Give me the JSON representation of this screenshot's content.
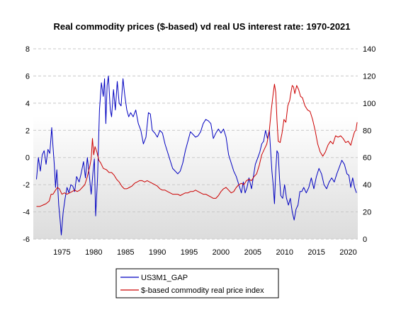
{
  "chart_data": {
    "type": "line",
    "title": "Real commodity prices ($-based) vd real US interest rate: 1970-2021",
    "xlim": [
      1970.5,
      2021.5
    ],
    "x_ticks": [
      1975,
      1980,
      1985,
      1990,
      1995,
      2000,
      2005,
      2010,
      2015,
      2020
    ],
    "x_tick_labels": [
      "1975",
      "1980",
      "1985",
      "1990",
      "1995",
      "2000",
      "2005",
      "2010",
      "2015",
      "2020"
    ],
    "y_left": {
      "lim": [
        -6,
        8
      ],
      "ticks": [
        -6,
        -4,
        -2,
        0,
        2,
        4,
        6,
        8
      ],
      "tick_labels": [
        "-6",
        "-4",
        "-2",
        "0",
        "2",
        "4",
        "6",
        "8"
      ]
    },
    "y_right": {
      "lim": [
        0,
        140
      ],
      "ticks": [
        0,
        20,
        40,
        60,
        80,
        100,
        120,
        140
      ],
      "tick_labels": [
        "0",
        "20",
        "40",
        "60",
        "80",
        "100",
        "120",
        "140"
      ]
    },
    "grid": "horizontal dashed",
    "legend_position": "bottom",
    "series": [
      {
        "name": "US3M1_GAP",
        "axis": "left",
        "color": "#0000c0",
        "points": [
          [
            1971.0,
            -1.6
          ],
          [
            1971.3,
            0.0
          ],
          [
            1971.6,
            -1.0
          ],
          [
            1971.9,
            0.2
          ],
          [
            1972.2,
            0.5
          ],
          [
            1972.5,
            -0.5
          ],
          [
            1972.8,
            0.6
          ],
          [
            1973.1,
            0.3
          ],
          [
            1973.4,
            2.2
          ],
          [
            1973.6,
            0.8
          ],
          [
            1973.8,
            -0.5
          ],
          [
            1974.0,
            -2.2
          ],
          [
            1974.2,
            -0.9
          ],
          [
            1974.5,
            -3.5
          ],
          [
            1974.7,
            -4.5
          ],
          [
            1974.9,
            -5.7
          ],
          [
            1975.2,
            -4.0
          ],
          [
            1975.5,
            -3.0
          ],
          [
            1975.8,
            -2.2
          ],
          [
            1976.1,
            -2.6
          ],
          [
            1976.4,
            -2.0
          ],
          [
            1976.7,
            -2.1
          ],
          [
            1977.0,
            -2.5
          ],
          [
            1977.3,
            -1.4
          ],
          [
            1977.7,
            -1.8
          ],
          [
            1978.0,
            -1.2
          ],
          [
            1978.4,
            -0.3
          ],
          [
            1978.7,
            -1.5
          ],
          [
            1979.0,
            0.0
          ],
          [
            1979.3,
            -1.3
          ],
          [
            1979.6,
            -2.7
          ],
          [
            1979.9,
            -1.0
          ],
          [
            1980.1,
            -0.1
          ],
          [
            1980.3,
            -4.3
          ],
          [
            1980.6,
            -1.5
          ],
          [
            1980.9,
            3.5
          ],
          [
            1981.2,
            5.5
          ],
          [
            1981.5,
            4.5
          ],
          [
            1981.7,
            5.8
          ],
          [
            1981.9,
            2.5
          ],
          [
            1982.1,
            5.3
          ],
          [
            1982.3,
            6.0
          ],
          [
            1982.6,
            3.5
          ],
          [
            1982.8,
            3.0
          ],
          [
            1983.1,
            5.0
          ],
          [
            1983.4,
            3.5
          ],
          [
            1983.7,
            5.6
          ],
          [
            1984.0,
            4.0
          ],
          [
            1984.3,
            3.8
          ],
          [
            1984.6,
            5.8
          ],
          [
            1984.9,
            4.5
          ],
          [
            1985.2,
            3.5
          ],
          [
            1985.5,
            3.0
          ],
          [
            1985.8,
            3.3
          ],
          [
            1986.2,
            3.0
          ],
          [
            1986.6,
            3.5
          ],
          [
            1987.0,
            2.5
          ],
          [
            1987.4,
            2.0
          ],
          [
            1987.8,
            1.0
          ],
          [
            1988.2,
            1.5
          ],
          [
            1988.6,
            3.3
          ],
          [
            1988.9,
            3.2
          ],
          [
            1989.2,
            2.0
          ],
          [
            1989.6,
            1.8
          ],
          [
            1990.0,
            1.5
          ],
          [
            1990.4,
            2.0
          ],
          [
            1990.8,
            1.8
          ],
          [
            1991.2,
            1.0
          ],
          [
            1991.6,
            0.4
          ],
          [
            1992.0,
            -0.2
          ],
          [
            1992.4,
            -0.8
          ],
          [
            1992.8,
            -1.0
          ],
          [
            1993.2,
            -1.2
          ],
          [
            1993.6,
            -1.0
          ],
          [
            1994.0,
            -0.4
          ],
          [
            1994.4,
            0.5
          ],
          [
            1994.8,
            1.2
          ],
          [
            1995.2,
            1.9
          ],
          [
            1995.6,
            1.7
          ],
          [
            1996.0,
            1.5
          ],
          [
            1996.4,
            1.6
          ],
          [
            1996.8,
            1.9
          ],
          [
            1997.2,
            2.5
          ],
          [
            1997.6,
            2.8
          ],
          [
            1998.0,
            2.7
          ],
          [
            1998.4,
            2.5
          ],
          [
            1998.8,
            1.4
          ],
          [
            1999.2,
            1.8
          ],
          [
            1999.6,
            2.1
          ],
          [
            2000.0,
            1.8
          ],
          [
            2000.4,
            2.1
          ],
          [
            2000.8,
            1.5
          ],
          [
            2001.2,
            0.2
          ],
          [
            2001.6,
            -0.4
          ],
          [
            2002.0,
            -1.0
          ],
          [
            2002.4,
            -1.4
          ],
          [
            2002.8,
            -2.0
          ],
          [
            2003.2,
            -2.6
          ],
          [
            2003.5,
            -1.8
          ],
          [
            2003.8,
            -2.6
          ],
          [
            2004.1,
            -2.2
          ],
          [
            2004.4,
            -1.5
          ],
          [
            2004.8,
            -2.3
          ],
          [
            2005.1,
            -1.4
          ],
          [
            2005.4,
            -0.5
          ],
          [
            2005.8,
            0.0
          ],
          [
            2006.1,
            0.4
          ],
          [
            2006.4,
            1.0
          ],
          [
            2006.7,
            1.2
          ],
          [
            2007.0,
            2.0
          ],
          [
            2007.3,
            1.4
          ],
          [
            2007.6,
            2.0
          ],
          [
            2007.8,
            0.5
          ],
          [
            2008.0,
            -1.0
          ],
          [
            2008.2,
            -2.0
          ],
          [
            2008.4,
            -3.4
          ],
          [
            2008.6,
            -1.0
          ],
          [
            2008.8,
            0.5
          ],
          [
            2009.0,
            0.3
          ],
          [
            2009.2,
            -1.5
          ],
          [
            2009.4,
            -2.8
          ],
          [
            2009.7,
            -3.0
          ],
          [
            2010.0,
            -2.0
          ],
          [
            2010.3,
            -3.0
          ],
          [
            2010.6,
            -3.5
          ],
          [
            2010.9,
            -3.0
          ],
          [
            2011.2,
            -4.0
          ],
          [
            2011.5,
            -4.6
          ],
          [
            2011.8,
            -3.8
          ],
          [
            2012.1,
            -3.5
          ],
          [
            2012.4,
            -2.5
          ],
          [
            2012.7,
            -2.5
          ],
          [
            2013.0,
            -2.2
          ],
          [
            2013.4,
            -2.6
          ],
          [
            2013.8,
            -2.2
          ],
          [
            2014.2,
            -1.5
          ],
          [
            2014.6,
            -2.3
          ],
          [
            2015.0,
            -1.4
          ],
          [
            2015.4,
            -0.8
          ],
          [
            2015.8,
            -1.2
          ],
          [
            2016.2,
            -2.0
          ],
          [
            2016.6,
            -2.3
          ],
          [
            2017.0,
            -1.8
          ],
          [
            2017.4,
            -1.5
          ],
          [
            2017.8,
            -1.8
          ],
          [
            2018.2,
            -1.2
          ],
          [
            2018.6,
            -0.7
          ],
          [
            2019.0,
            -0.2
          ],
          [
            2019.4,
            -0.5
          ],
          [
            2019.8,
            -1.2
          ],
          [
            2020.1,
            -1.3
          ],
          [
            2020.4,
            -2.2
          ],
          [
            2020.7,
            -1.5
          ],
          [
            2021.0,
            -2.2
          ],
          [
            2021.3,
            -2.6
          ]
        ]
      },
      {
        "name": "$-based commodity real price index",
        "axis": "right",
        "color": "#cc0000",
        "points": [
          [
            1971.0,
            24.0
          ],
          [
            1971.5,
            24.0
          ],
          [
            1972.0,
            25.0
          ],
          [
            1972.5,
            26.0
          ],
          [
            1973.0,
            28.0
          ],
          [
            1973.3,
            33.0
          ],
          [
            1973.6,
            33.0
          ],
          [
            1974.0,
            36.0
          ],
          [
            1974.3,
            38.0
          ],
          [
            1974.6,
            37.0
          ],
          [
            1975.0,
            33.0
          ],
          [
            1975.4,
            34.0
          ],
          [
            1975.8,
            33.0
          ],
          [
            1976.2,
            34.0
          ],
          [
            1976.6,
            35.0
          ],
          [
            1977.0,
            36.0
          ],
          [
            1977.4,
            35.0
          ],
          [
            1977.8,
            36.0
          ],
          [
            1978.2,
            38.0
          ],
          [
            1978.6,
            40.0
          ],
          [
            1979.0,
            46.0
          ],
          [
            1979.4,
            54.0
          ],
          [
            1979.6,
            59.0
          ],
          [
            1979.8,
            74.0
          ],
          [
            1980.0,
            62.0
          ],
          [
            1980.2,
            68.0
          ],
          [
            1980.5,
            64.0
          ],
          [
            1980.8,
            58.0
          ],
          [
            1981.1,
            56.0
          ],
          [
            1981.5,
            52.0
          ],
          [
            1982.0,
            51.0
          ],
          [
            1982.4,
            49.0
          ],
          [
            1982.8,
            49.0
          ],
          [
            1983.2,
            47.0
          ],
          [
            1983.6,
            44.0
          ],
          [
            1984.0,
            42.0
          ],
          [
            1984.4,
            39.0
          ],
          [
            1984.8,
            37.0
          ],
          [
            1985.2,
            37.0
          ],
          [
            1985.6,
            38.0
          ],
          [
            1986.0,
            39.0
          ],
          [
            1986.4,
            41.0
          ],
          [
            1986.8,
            42.0
          ],
          [
            1987.2,
            43.0
          ],
          [
            1987.6,
            43.0
          ],
          [
            1988.0,
            42.0
          ],
          [
            1988.4,
            43.0
          ],
          [
            1988.8,
            42.0
          ],
          [
            1989.2,
            41.0
          ],
          [
            1989.6,
            40.0
          ],
          [
            1990.0,
            39.0
          ],
          [
            1990.4,
            37.0
          ],
          [
            1990.8,
            36.0
          ],
          [
            1991.2,
            36.0
          ],
          [
            1991.6,
            35.0
          ],
          [
            1992.0,
            34.0
          ],
          [
            1992.4,
            33.0
          ],
          [
            1992.8,
            33.0
          ],
          [
            1993.2,
            33.0
          ],
          [
            1993.6,
            32.0
          ],
          [
            1994.0,
            33.0
          ],
          [
            1994.4,
            34.0
          ],
          [
            1994.8,
            34.0
          ],
          [
            1995.2,
            35.0
          ],
          [
            1995.6,
            35.0
          ],
          [
            1996.0,
            36.0
          ],
          [
            1996.4,
            35.0
          ],
          [
            1996.8,
            34.0
          ],
          [
            1997.2,
            33.0
          ],
          [
            1997.6,
            33.0
          ],
          [
            1998.0,
            32.0
          ],
          [
            1998.4,
            31.0
          ],
          [
            1998.8,
            30.0
          ],
          [
            1999.2,
            30.0
          ],
          [
            1999.6,
            32.0
          ],
          [
            2000.0,
            35.0
          ],
          [
            2000.4,
            37.0
          ],
          [
            2000.8,
            38.0
          ],
          [
            2001.2,
            36.0
          ],
          [
            2001.6,
            34.0
          ],
          [
            2002.0,
            35.0
          ],
          [
            2002.4,
            38.0
          ],
          [
            2002.8,
            40.0
          ],
          [
            2003.2,
            41.0
          ],
          [
            2003.6,
            40.0
          ],
          [
            2004.0,
            43.0
          ],
          [
            2004.4,
            44.0
          ],
          [
            2004.8,
            43.0
          ],
          [
            2005.2,
            46.0
          ],
          [
            2005.6,
            48.0
          ],
          [
            2006.0,
            54.0
          ],
          [
            2006.4,
            62.0
          ],
          [
            2006.8,
            66.0
          ],
          [
            2007.2,
            70.0
          ],
          [
            2007.6,
            80.0
          ],
          [
            2007.9,
            95.0
          ],
          [
            2008.2,
            107.0
          ],
          [
            2008.4,
            114.0
          ],
          [
            2008.6,
            108.0
          ],
          [
            2008.8,
            88.0
          ],
          [
            2009.0,
            72.0
          ],
          [
            2009.3,
            71.0
          ],
          [
            2009.6,
            78.0
          ],
          [
            2009.9,
            88.0
          ],
          [
            2010.2,
            86.0
          ],
          [
            2010.5,
            98.0
          ],
          [
            2010.8,
            102.0
          ],
          [
            2011.0,
            108.0
          ],
          [
            2011.2,
            113.0
          ],
          [
            2011.4,
            112.0
          ],
          [
            2011.6,
            107.0
          ],
          [
            2011.9,
            113.0
          ],
          [
            2012.2,
            110.0
          ],
          [
            2012.5,
            105.0
          ],
          [
            2012.8,
            104.0
          ],
          [
            2013.2,
            98.0
          ],
          [
            2013.6,
            95.0
          ],
          [
            2014.0,
            94.0
          ],
          [
            2014.4,
            88.0
          ],
          [
            2014.8,
            80.0
          ],
          [
            2015.2,
            70.0
          ],
          [
            2015.6,
            64.0
          ],
          [
            2016.0,
            61.0
          ],
          [
            2016.4,
            64.0
          ],
          [
            2016.8,
            69.0
          ],
          [
            2017.2,
            72.0
          ],
          [
            2017.6,
            70.0
          ],
          [
            2018.0,
            76.0
          ],
          [
            2018.4,
            75.0
          ],
          [
            2018.8,
            76.0
          ],
          [
            2019.2,
            74.0
          ],
          [
            2019.6,
            71.0
          ],
          [
            2020.0,
            72.0
          ],
          [
            2020.4,
            69.0
          ],
          [
            2020.8,
            76.0
          ],
          [
            2021.0,
            79.0
          ],
          [
            2021.2,
            80.0
          ],
          [
            2021.4,
            86.0
          ]
        ]
      }
    ]
  }
}
